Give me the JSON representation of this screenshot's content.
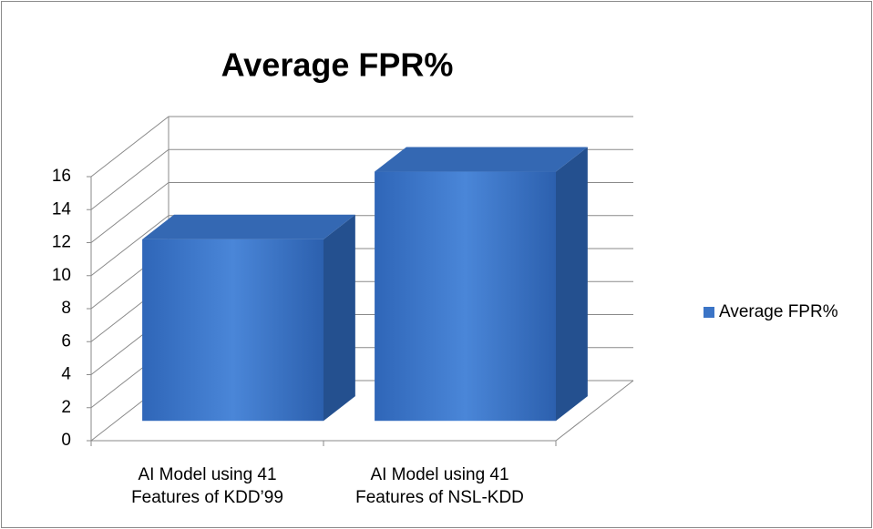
{
  "chart_data": {
    "type": "bar3d",
    "title": "Average FPR%",
    "categories": [
      "AI Model using 41\nFeatures of KDD’99",
      "AI Model using 41\nFeatures of NSL-KDD"
    ],
    "series": [
      {
        "name": "Average FPR%",
        "color": "#3b74c6",
        "values": [
          11,
          15.1
        ]
      }
    ],
    "ylim": [
      0,
      16
    ],
    "yticks": [
      0,
      2,
      4,
      6,
      8,
      10,
      12,
      14,
      16
    ],
    "grid": true,
    "legend": "right"
  }
}
